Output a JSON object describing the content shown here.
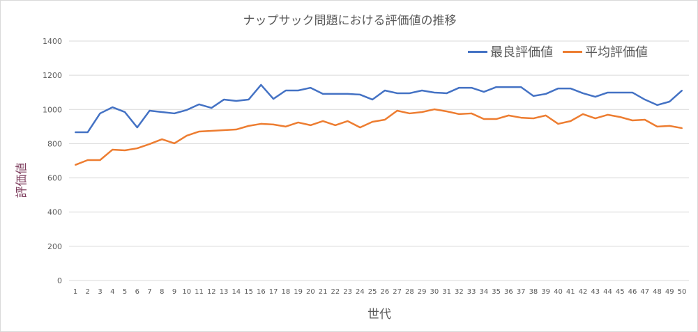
{
  "chart_data": {
    "type": "line",
    "title": "ナップサック問題における評価値の推移",
    "xlabel": "世代",
    "ylabel": "評価値",
    "ylim": [
      0,
      1400
    ],
    "yticks": [
      0,
      200,
      400,
      600,
      800,
      1000,
      1200,
      1400
    ],
    "grid": true,
    "legend": "top-right",
    "x": [
      1,
      2,
      3,
      4,
      5,
      6,
      7,
      8,
      9,
      10,
      11,
      12,
      13,
      14,
      15,
      16,
      17,
      18,
      19,
      20,
      21,
      22,
      23,
      24,
      25,
      26,
      27,
      28,
      29,
      30,
      31,
      32,
      33,
      34,
      35,
      36,
      37,
      38,
      39,
      40,
      41,
      42,
      43,
      44,
      45,
      46,
      47,
      48,
      49,
      50
    ],
    "series": [
      {
        "name": "最良評価値",
        "color": "#4472C4",
        "values": [
          867,
          867,
          977,
          1013,
          985,
          895,
          993,
          985,
          977,
          997,
          1030,
          1009,
          1058,
          1050,
          1058,
          1144,
          1062,
          1111,
          1111,
          1127,
          1091,
          1091,
          1091,
          1087,
          1058,
          1111,
          1095,
          1095,
          1111,
          1099,
          1095,
          1127,
          1127,
          1103,
          1131,
          1131,
          1131,
          1079,
          1091,
          1123,
          1123,
          1095,
          1074,
          1099,
          1099,
          1099,
          1058,
          1026,
          1046,
          1111
        ]
      },
      {
        "name": "平均評価値",
        "color": "#ED7D31",
        "values": [
          676,
          704,
          704,
          765,
          761,
          773,
          798,
          826,
          802,
          847,
          871,
          875,
          879,
          883,
          904,
          916,
          912,
          900,
          924,
          908,
          932,
          908,
          932,
          895,
          928,
          940,
          993,
          977,
          985,
          1001,
          989,
          973,
          977,
          944,
          944,
          965,
          952,
          948,
          965,
          916,
          932,
          973,
          948,
          969,
          956,
          936,
          940,
          900,
          904,
          891
        ]
      }
    ]
  }
}
